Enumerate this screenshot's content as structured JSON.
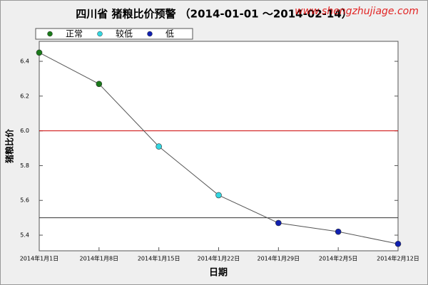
{
  "chart_data": {
    "type": "line",
    "title": "四川省 猪粮比价预警 （2014-01-01 ～2014-02-14）",
    "watermark": "www.shengzhujiage.com",
    "x_label": "日期",
    "y_label": "猪粮比价",
    "categories": [
      "2014年1月1日",
      "2014年1月8日",
      "2014年1月15日",
      "2014年1月22日",
      "2014年1月29日",
      "2014年2月5日",
      "2014年2月12日"
    ],
    "values": [
      6.45,
      6.27,
      5.91,
      5.63,
      5.47,
      5.42,
      5.35
    ],
    "line_color": "#555555",
    "point_colors": [
      "#1a7a1a",
      "#1a7a1a",
      "#33d6e0",
      "#33d6e0",
      "#1020b0",
      "#1020b0",
      "#1020b0"
    ],
    "legend": [
      {
        "name": "正常",
        "color": "#1a7a1a"
      },
      {
        "name": "较低",
        "color": "#33d6e0"
      },
      {
        "name": "低",
        "color": "#1020b0"
      }
    ],
    "reference_lines": [
      {
        "value": 6.0,
        "color": "#cc0000"
      },
      {
        "value": 5.5,
        "color": "#333333"
      }
    ],
    "ylim": [
      5.31,
      6.515
    ],
    "yticks": [
      5.4,
      5.6,
      5.8,
      {
        "value": 6,
        "label": "6.0"
      },
      6.2,
      6.4
    ]
  }
}
